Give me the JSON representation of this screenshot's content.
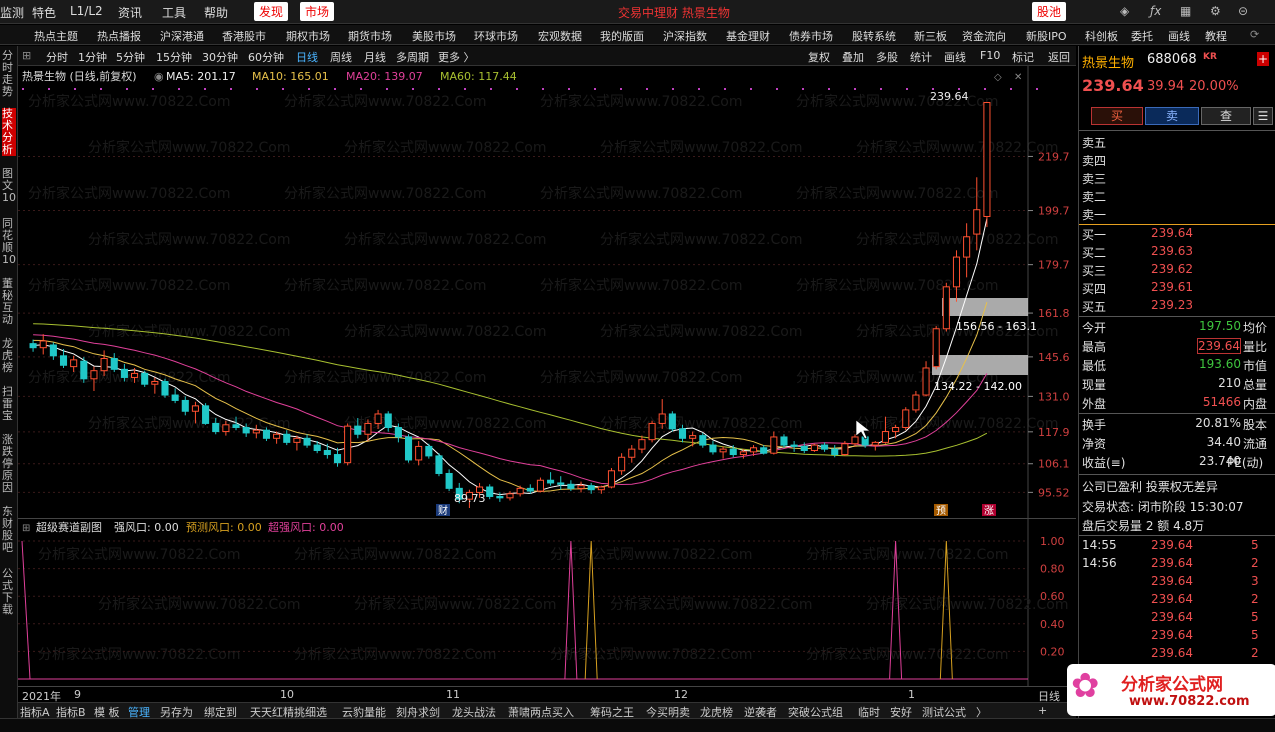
{
  "topbar": {
    "items": [
      "监测",
      "特色",
      "L1/L2",
      "资讯",
      "工具",
      "帮助"
    ],
    "tab_discover": "发现",
    "tab_market": "市场",
    "notice": "交易中理财  热景生物",
    "stock_pool": "股池"
  },
  "navbar": {
    "items": [
      "热点主题",
      "热点播报",
      "沪深港通",
      "香港股市",
      "期权市场",
      "期货市场",
      "美股市场",
      "环球市场",
      "宏观数据",
      "我的版面",
      "沪深指数",
      "基金理财",
      "债券市场",
      "股转系统",
      "新三板",
      "资金流向",
      "新股IPO",
      "科创板",
      "委托",
      "画线",
      "教程"
    ]
  },
  "leftbar": {
    "items": [
      "分时走势",
      "技术分析",
      "图文10",
      "同花顺10",
      "董秘互动",
      "龙虎榜",
      "扫雷宝",
      "涨跌停原因",
      "东财股吧",
      "公式下载"
    ]
  },
  "toolbar": {
    "periods": [
      "分时",
      "1分钟",
      "5分钟",
      "15分钟",
      "30分钟",
      "60分钟",
      "日线",
      "周线",
      "月线",
      "多周期",
      "更多 〉"
    ],
    "actions": [
      "复权",
      "叠加",
      "多股",
      "统计",
      "画线",
      "F10",
      "标记",
      "返回"
    ]
  },
  "main_chart": {
    "title": "热景生物 (日线,前复权)",
    "ma5": "MA5: 201.17",
    "ma10": "MA10: 165.01",
    "ma20": "MA20: 139.07",
    "ma60": "MA60: 117.44",
    "price_ticks": [
      "219.7",
      "199.7",
      "179.7",
      "161.8",
      "145.6",
      "131.0",
      "117.9",
      "106.1",
      "95.52"
    ],
    "high_label": "239.64",
    "low_label": "89.73",
    "zone1_label": "156.56 - 163.1",
    "zone2_label": "134.22 - 142.00",
    "marker_cai": "财",
    "marker_yu": "预",
    "marker_zhang": "涨",
    "watermark": "分析家公式网www.70822.Com"
  },
  "sub_chart": {
    "title": "超级赛道副图",
    "strong": "强风口: 0.00",
    "predict": "预测风口: 0.00",
    "super": "超强风口: 0.00",
    "ticks": [
      "1.00",
      "0.80",
      "0.60",
      "0.40",
      "0.20"
    ]
  },
  "date_axis": {
    "year": "2021年",
    "months": [
      "9",
      "10",
      "11",
      "12",
      "1"
    ],
    "period_btn": "日线"
  },
  "bottom_tabs": [
    "指标A",
    "指标B",
    "模 板",
    "管理",
    "另存为",
    "绑定到",
    "天天红精挑细选",
    "云豹量能",
    "刻舟求剑",
    "龙头战法",
    "萧啸两点买入",
    "筹码之王",
    "今买明卖",
    "龙虎榜",
    "逆袭者",
    "突破公式组",
    "临时",
    "安好",
    "测试公式",
    "〉"
  ],
  "right_panel": {
    "name": "热景生物",
    "code": "688068",
    "tag": "KR",
    "price": "239.64",
    "change": "39.94",
    "pct": "20.00%",
    "btn_buy": "买",
    "btn_sell": "卖",
    "btn_query": "查",
    "asks": [
      "卖五",
      "卖四",
      "卖三",
      "卖二",
      "卖一"
    ],
    "bids": [
      {
        "label": "买一",
        "price": "239.64"
      },
      {
        "label": "买二",
        "price": "239.63"
      },
      {
        "label": "买三",
        "price": "239.62"
      },
      {
        "label": "买四",
        "price": "239.61"
      },
      {
        "label": "买五",
        "price": "239.23"
      }
    ],
    "stats": [
      {
        "k": "今开",
        "v": "197.50",
        "k2": "均价"
      },
      {
        "k": "最高",
        "v": "239.64",
        "k2": "量比"
      },
      {
        "k": "最低",
        "v": "193.60",
        "k2": "市值"
      },
      {
        "k": "现量",
        "v": "210",
        "k2": "总量"
      },
      {
        "k": "外盘",
        "v": "51466",
        "k2": "内盘"
      }
    ],
    "stats2": [
      {
        "k": "换手",
        "v": "20.81%",
        "k2": "股本"
      },
      {
        "k": "净资",
        "v": "34.40",
        "k2": "流通"
      },
      {
        "k": "收益(≡)",
        "v": "23.740",
        "k2": "PE(动)"
      }
    ],
    "profit": "公司已盈利 投票权无差异",
    "status": "交易状态: 闭市阶段 15:30:07",
    "after": "盘后交易量 2 额 4.8万",
    "ticks": [
      {
        "t": "14:55",
        "p": "239.64",
        "v": "5"
      },
      {
        "t": "14:56",
        "p": "239.64",
        "v": "2"
      },
      {
        "t": "",
        "p": "239.64",
        "v": "3"
      },
      {
        "t": "",
        "p": "239.64",
        "v": "2"
      },
      {
        "t": "",
        "p": "239.64",
        "v": "5"
      },
      {
        "t": "",
        "p": "239.64",
        "v": "5"
      },
      {
        "t": "",
        "p": "239.64",
        "v": "2"
      }
    ],
    "logo": "分析家公式网",
    "logo_url": "www.70822.com"
  },
  "chart_data": {
    "type": "candlestick",
    "title": "热景生物 (日线,前复权)",
    "ylim": [
      89,
      245
    ],
    "candles": [
      [
        150.5,
        152.0,
        147.5,
        149.0
      ],
      [
        149.0,
        154.0,
        146.5,
        151.5
      ],
      [
        150.0,
        151.0,
        144.5,
        146.0
      ],
      [
        146.0,
        148.5,
        141.5,
        142.5
      ],
      [
        142.0,
        146.0,
        140.0,
        144.5
      ],
      [
        144.0,
        145.5,
        136.0,
        137.5
      ],
      [
        137.5,
        142.0,
        133.0,
        140.5
      ],
      [
        140.5,
        148.0,
        138.5,
        145.0
      ],
      [
        145.0,
        147.0,
        140.0,
        141.0
      ],
      [
        141.0,
        143.0,
        136.5,
        138.0
      ],
      [
        138.0,
        141.5,
        136.0,
        139.5
      ],
      [
        139.5,
        140.5,
        134.5,
        135.5
      ],
      [
        135.5,
        138.0,
        132.0,
        136.5
      ],
      [
        136.5,
        137.5,
        130.5,
        131.5
      ],
      [
        131.5,
        134.0,
        128.5,
        129.5
      ],
      [
        129.5,
        131.0,
        124.0,
        125.5
      ],
      [
        125.5,
        129.0,
        121.0,
        127.5
      ],
      [
        127.5,
        128.5,
        120.5,
        121.0
      ],
      [
        121.0,
        123.0,
        117.0,
        118.0
      ],
      [
        118.0,
        122.0,
        116.5,
        120.5
      ],
      [
        120.5,
        123.5,
        118.5,
        119.5
      ],
      [
        119.5,
        121.0,
        116.0,
        117.5
      ],
      [
        117.5,
        120.5,
        115.5,
        118.5
      ],
      [
        118.5,
        119.5,
        114.5,
        115.5
      ],
      [
        115.5,
        118.0,
        113.5,
        117.0
      ],
      [
        117.0,
        118.5,
        113.0,
        114.0
      ],
      [
        114.0,
        116.5,
        111.0,
        115.5
      ],
      [
        115.5,
        117.0,
        112.0,
        113.0
      ],
      [
        113.0,
        114.5,
        110.0,
        111.0
      ],
      [
        111.0,
        113.5,
        108.0,
        109.5
      ],
      [
        109.5,
        112.0,
        105.0,
        106.5
      ],
      [
        106.5,
        121.0,
        105.5,
        120.0
      ],
      [
        120.0,
        123.0,
        115.5,
        117.0
      ],
      [
        117.0,
        122.5,
        114.5,
        121.0
      ],
      [
        121.0,
        126.0,
        119.0,
        124.5
      ],
      [
        124.5,
        125.5,
        118.0,
        119.5
      ],
      [
        119.5,
        121.0,
        114.0,
        116.0
      ],
      [
        116.0,
        117.0,
        106.5,
        107.5
      ],
      [
        107.5,
        114.5,
        105.5,
        112.5
      ],
      [
        112.5,
        113.5,
        108.0,
        109.0
      ],
      [
        109.0,
        110.0,
        101.5,
        102.5
      ],
      [
        102.5,
        104.0,
        96.0,
        97.0
      ],
      [
        97.0,
        99.0,
        91.5,
        93.0
      ],
      [
        93.0,
        96.5,
        89.73,
        95.5
      ],
      [
        95.5,
        99.0,
        93.5,
        97.5
      ],
      [
        97.5,
        98.5,
        93.0,
        94.0
      ],
      [
        94.0,
        95.5,
        92.0,
        93.5
      ],
      [
        93.5,
        96.0,
        92.5,
        95.0
      ],
      [
        95.0,
        98.0,
        94.0,
        97.0
      ],
      [
        97.0,
        98.5,
        95.0,
        96.0
      ],
      [
        96.0,
        101.0,
        95.5,
        100.0
      ],
      [
        100.0,
        103.0,
        98.0,
        99.0
      ],
      [
        99.0,
        101.5,
        96.5,
        98.5
      ],
      [
        98.5,
        100.0,
        96.0,
        97.0
      ],
      [
        97.0,
        99.5,
        95.5,
        98.0
      ],
      [
        98.0,
        99.0,
        95.0,
        96.5
      ],
      [
        96.5,
        98.0,
        95.0,
        97.5
      ],
      [
        97.5,
        104.5,
        97.0,
        103.5
      ],
      [
        103.5,
        110.0,
        102.0,
        108.5
      ],
      [
        108.5,
        113.0,
        106.5,
        111.5
      ],
      [
        111.5,
        116.5,
        110.0,
        115.0
      ],
      [
        115.0,
        122.0,
        114.0,
        121.0
      ],
      [
        121.0,
        130.0,
        119.0,
        124.5
      ],
      [
        124.5,
        125.5,
        118.0,
        119.0
      ],
      [
        119.0,
        120.5,
        114.0,
        115.5
      ],
      [
        115.5,
        118.0,
        112.5,
        116.5
      ],
      [
        116.5,
        117.5,
        112.0,
        113.0
      ],
      [
        113.0,
        114.5,
        109.5,
        110.5
      ],
      [
        110.5,
        112.5,
        108.0,
        111.5
      ],
      [
        111.5,
        113.0,
        108.5,
        109.5
      ],
      [
        109.5,
        111.5,
        108.0,
        110.5
      ],
      [
        110.5,
        113.0,
        109.0,
        112.0
      ],
      [
        112.0,
        113.0,
        109.5,
        110.0
      ],
      [
        110.0,
        118.0,
        109.5,
        116.0
      ],
      [
        116.0,
        117.0,
        112.0,
        113.0
      ],
      [
        113.0,
        114.5,
        110.5,
        112.5
      ],
      [
        112.5,
        114.0,
        110.0,
        111.0
      ],
      [
        111.0,
        113.5,
        110.5,
        113.0
      ],
      [
        113.0,
        114.0,
        110.5,
        111.5
      ],
      [
        111.5,
        113.0,
        108.5,
        109.5
      ],
      [
        109.5,
        114.5,
        109.0,
        113.5
      ],
      [
        113.5,
        117.0,
        112.5,
        116.0
      ],
      [
        116.0,
        117.0,
        112.0,
        113.0
      ],
      [
        113.0,
        114.5,
        111.0,
        114.0
      ],
      [
        114.0,
        123.5,
        113.5,
        118.0
      ],
      [
        118.0,
        120.5,
        115.5,
        119.5
      ],
      [
        119.5,
        127.0,
        118.5,
        126.0
      ],
      [
        126.0,
        133.0,
        125.0,
        131.5
      ],
      [
        131.5,
        144.0,
        131.0,
        141.5
      ],
      [
        142.0,
        157.0,
        141.0,
        156.0
      ],
      [
        156.0,
        173.0,
        155.0,
        171.5
      ],
      [
        171.5,
        185.0,
        166.0,
        182.5
      ],
      [
        182.5,
        195.0,
        175.0,
        190.0
      ],
      [
        191.0,
        212.0,
        185.0,
        200.0
      ],
      [
        197.5,
        239.64,
        193.6,
        239.64
      ]
    ],
    "ma_series": [
      {
        "name": "MA5",
        "color": "#ffffff",
        "last": 201.17
      },
      {
        "name": "MA10",
        "color": "#e6c04a",
        "last": 165.01
      },
      {
        "name": "MA20",
        "color": "#e0409a",
        "last": 139.07
      },
      {
        "name": "MA60",
        "color": "#a8c030",
        "last": 117.44
      }
    ],
    "sub_series": [
      {
        "name": "强风口",
        "color": "#e0409a",
        "spikes": [
          53,
          85,
          128
        ]
      },
      {
        "name": "预测风口",
        "color": "#d6a020",
        "spikes": [
          55,
          90
        ]
      }
    ]
  }
}
